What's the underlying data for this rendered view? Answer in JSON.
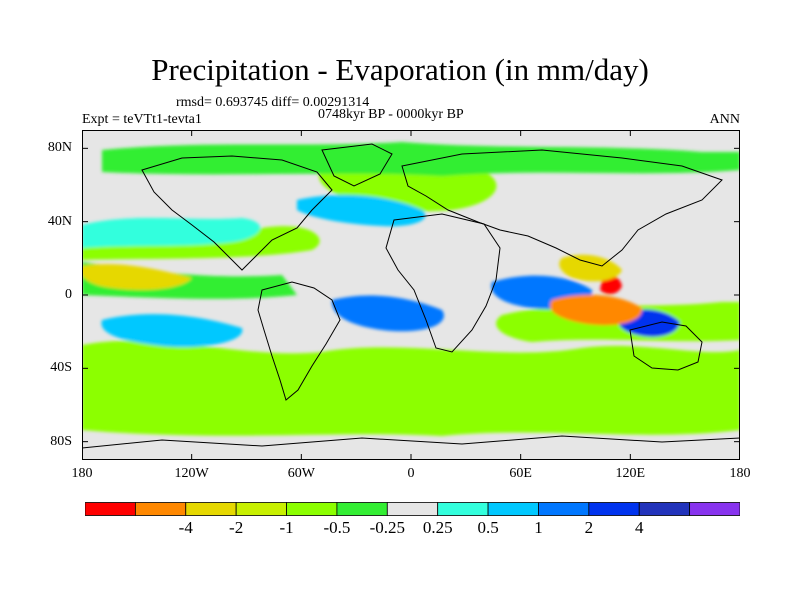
{
  "title": "Precipitation - Evaporation (in mm/day)",
  "stats_line": "rmsd= 0.693745  diff= 0.00291314",
  "period_line": "0748kyr BP - 0000kyr BP",
  "experiment_line": "Expt = teVTt1-tevta1",
  "season": "ANN",
  "axes": {
    "y_ticks": [
      {
        "label": "80N",
        "lat": 80
      },
      {
        "label": "40N",
        "lat": 40
      },
      {
        "label": "0",
        "lat": 0
      },
      {
        "label": "40S",
        "lat": -40
      },
      {
        "label": "80S",
        "lat": -80
      }
    ],
    "x_ticks": [
      {
        "label": "180",
        "lon": -180
      },
      {
        "label": "120W",
        "lon": -120
      },
      {
        "label": "60W",
        "lon": -60
      },
      {
        "label": "0",
        "lon": 0
      },
      {
        "label": "60E",
        "lon": 60
      },
      {
        "label": "120E",
        "lon": 120
      },
      {
        "label": "180",
        "lon": 180
      }
    ],
    "lon_range": [
      -180,
      180
    ],
    "lat_range": [
      -90,
      90
    ]
  },
  "colorbar": {
    "colors": [
      "#ff0000",
      "#ff8800",
      "#e6d800",
      "#c8f000",
      "#8cff00",
      "#33ee33",
      "#e6e6e6",
      "#33ffdd",
      "#00c8ff",
      "#0077ff",
      "#0033ee",
      "#2233bb",
      "#8833ee"
    ],
    "labels": [
      {
        "text": "-4",
        "boundary": 2
      },
      {
        "text": "-2",
        "boundary": 3
      },
      {
        "text": "-1",
        "boundary": 4
      },
      {
        "text": "-0.5",
        "boundary": 5
      },
      {
        "text": "-0.25",
        "boundary": 6
      },
      {
        "text": "0.25",
        "boundary": 7
      },
      {
        "text": "0.5",
        "boundary": 8
      },
      {
        "text": "1",
        "boundary": 9
      },
      {
        "text": "2",
        "boundary": 10
      },
      {
        "text": "4",
        "boundary": 11
      }
    ]
  }
}
